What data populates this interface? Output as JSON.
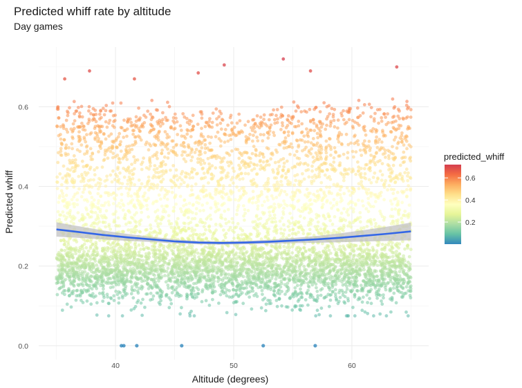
{
  "chart_data": {
    "type": "scatter",
    "title": "Predicted whiff rate by altitude",
    "subtitle": "Day games",
    "xlabel": "Altitude (degrees)",
    "ylabel": "Predicted whiff",
    "xlim": [
      33.5,
      66.5
    ],
    "ylim": [
      -0.035,
      0.75
    ],
    "x_ticks": [
      40,
      50,
      60
    ],
    "y_ticks": [
      0.0,
      0.2,
      0.4,
      0.6
    ],
    "y_tick_labels": [
      "0.0",
      "0.2",
      "0.4",
      "0.6"
    ],
    "grid": true,
    "point_count_approx": 6000,
    "x_range_points": [
      35,
      65
    ],
    "color_scale": {
      "name": "predicted_whiff",
      "palette": "Spectral (reversed)",
      "limits": [
        0.0,
        0.72
      ],
      "breaks": [
        0.2,
        0.4,
        0.6
      ],
      "break_labels": [
        "0.2",
        "0.4",
        "0.6"
      ],
      "colors": [
        "#3288bd",
        "#66c2a5",
        "#abdda4",
        "#e6f598",
        "#ffffbf",
        "#fee08b",
        "#fdae61",
        "#f46d43",
        "#d53e4f"
      ]
    },
    "zero_points_x": [
      40.5,
      40.7,
      41.8,
      45.6,
      52.5,
      56.9
    ],
    "notable_high_points": [
      {
        "x": 35.7,
        "y": 0.67
      },
      {
        "x": 37.8,
        "y": 0.69
      },
      {
        "x": 41.6,
        "y": 0.67
      },
      {
        "x": 49.2,
        "y": 0.705
      },
      {
        "x": 54.2,
        "y": 0.72
      },
      {
        "x": 63.8,
        "y": 0.7
      },
      {
        "x": 47.0,
        "y": 0.685
      },
      {
        "x": 56.5,
        "y": 0.69
      }
    ],
    "smooth_line": {
      "x": [
        35,
        37,
        39,
        41,
        43,
        45,
        47,
        49,
        51,
        53,
        55,
        57,
        59,
        61,
        63,
        65
      ],
      "y": [
        0.292,
        0.285,
        0.278,
        0.272,
        0.267,
        0.262,
        0.259,
        0.258,
        0.259,
        0.261,
        0.264,
        0.267,
        0.271,
        0.276,
        0.281,
        0.287
      ],
      "color": "#3366e6",
      "band_color": "#bdbdbd"
    }
  }
}
